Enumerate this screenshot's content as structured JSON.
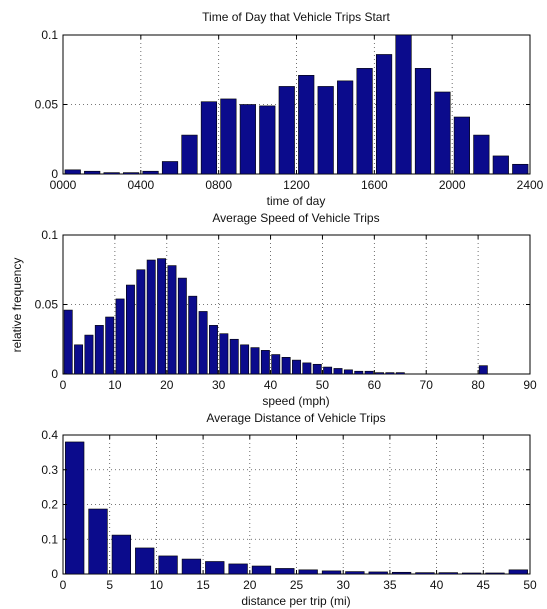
{
  "colors": {
    "bar_fill": "#0b0b8c",
    "bar_stroke": "#000000",
    "frame": "#000000",
    "background": "#ffffff"
  },
  "chart_data": [
    {
      "type": "bar",
      "title": "Time of Day that Vehicle Trips Start",
      "xlabel": "time of day",
      "ylabel": "",
      "xlim": [
        0,
        2400
      ],
      "ylim": [
        0,
        0.1
      ],
      "grid": true,
      "xticks": [
        0,
        400,
        800,
        1200,
        1600,
        2000,
        2400
      ],
      "xtick_labels": [
        "0000",
        "0400",
        "0800",
        "1200",
        "1600",
        "2000",
        "2400"
      ],
      "yticks": [
        0,
        0.05,
        0.1
      ],
      "ytick_labels": [
        "0",
        "0.05",
        "0.1"
      ],
      "bin_width": 100,
      "x": [
        50,
        150,
        250,
        350,
        450,
        550,
        650,
        750,
        850,
        950,
        1050,
        1150,
        1250,
        1350,
        1450,
        1550,
        1650,
        1750,
        1850,
        1950,
        2050,
        2150,
        2250,
        2350
      ],
      "values": [
        0.003,
        0.002,
        0.001,
        0.001,
        0.002,
        0.009,
        0.028,
        0.052,
        0.054,
        0.05,
        0.049,
        0.063,
        0.071,
        0.063,
        0.067,
        0.076,
        0.086,
        0.1,
        0.076,
        0.059,
        0.041,
        0.028,
        0.013,
        0.007
      ]
    },
    {
      "type": "bar",
      "title": "Average Speed of Vehicle Trips",
      "xlabel": "speed (mph)",
      "ylabel": "relative frequency",
      "xlim": [
        0,
        90
      ],
      "ylim": [
        0,
        0.1
      ],
      "grid": true,
      "xticks": [
        0,
        10,
        20,
        30,
        40,
        50,
        60,
        70,
        80,
        90
      ],
      "xtick_labels": [
        "0",
        "10",
        "20",
        "30",
        "40",
        "50",
        "60",
        "70",
        "80",
        "90"
      ],
      "yticks": [
        0,
        0.05,
        0.1
      ],
      "ytick_labels": [
        "0",
        "0.05",
        "0.1"
      ],
      "bin_width": 2,
      "x": [
        1,
        3,
        5,
        7,
        9,
        11,
        13,
        15,
        17,
        19,
        21,
        23,
        25,
        27,
        29,
        31,
        33,
        35,
        37,
        39,
        41,
        43,
        45,
        47,
        49,
        51,
        53,
        55,
        57,
        59,
        61,
        63,
        65,
        67,
        69,
        71,
        73,
        75,
        77,
        79,
        81
      ],
      "values": [
        0.046,
        0.021,
        0.028,
        0.035,
        0.041,
        0.054,
        0.064,
        0.075,
        0.082,
        0.083,
        0.078,
        0.069,
        0.056,
        0.045,
        0.035,
        0.029,
        0.025,
        0.021,
        0.019,
        0.017,
        0.014,
        0.012,
        0.01,
        0.008,
        0.007,
        0.005,
        0.004,
        0.003,
        0.002,
        0.002,
        0.001,
        0.001,
        0.001,
        0.0,
        0.0,
        0.0,
        0.0,
        0.0,
        0.0,
        0.0,
        0.006
      ]
    },
    {
      "type": "bar",
      "title": "Average Distance of Vehicle Trips",
      "xlabel": "distance per trip (mi)",
      "ylabel": "",
      "xlim": [
        0,
        50
      ],
      "ylim": [
        0,
        0.4
      ],
      "grid": true,
      "xticks": [
        0,
        5,
        10,
        15,
        20,
        25,
        30,
        35,
        40,
        45,
        50
      ],
      "xtick_labels": [
        "0",
        "5",
        "10",
        "15",
        "20",
        "25",
        "30",
        "35",
        "40",
        "45",
        "50"
      ],
      "yticks": [
        0,
        0.1,
        0.2,
        0.3,
        0.4
      ],
      "ytick_labels": [
        "0",
        "0.1",
        "0.2",
        "0.3",
        "0.4"
      ],
      "bin_width": 2.5,
      "x": [
        1.25,
        3.75,
        6.25,
        8.75,
        11.25,
        13.75,
        16.25,
        18.75,
        21.25,
        23.75,
        26.25,
        28.75,
        31.25,
        33.75,
        36.25,
        38.75,
        41.25,
        43.75,
        46.25,
        48.75
      ],
      "values": [
        0.38,
        0.187,
        0.112,
        0.075,
        0.052,
        0.043,
        0.036,
        0.029,
        0.023,
        0.016,
        0.012,
        0.009,
        0.007,
        0.006,
        0.005,
        0.004,
        0.004,
        0.003,
        0.003,
        0.012
      ]
    }
  ]
}
